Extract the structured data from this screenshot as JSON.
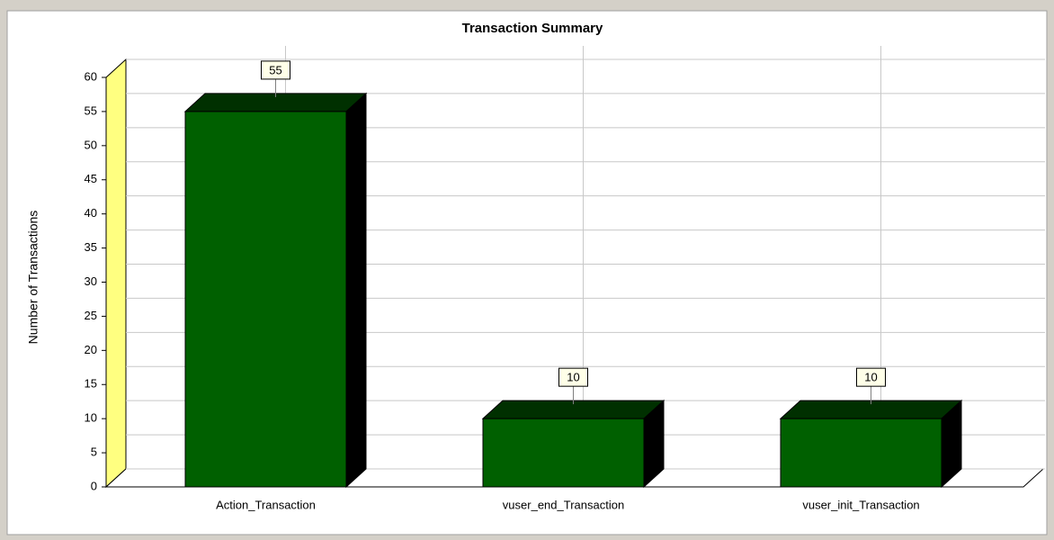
{
  "chart_data": {
    "type": "bar",
    "title": "Transaction Summary",
    "y_label": "Number of Transactions",
    "categories": [
      "Action_Transaction",
      "vuser_end_Transaction",
      "vuser_init_Transaction"
    ],
    "values": [
      55,
      10,
      10
    ],
    "color": "#006000",
    "ylim": [
      0,
      60
    ],
    "yticks": [
      0,
      5,
      10,
      15,
      20,
      25,
      30,
      35,
      40,
      45,
      50,
      55,
      60
    ],
    "grid": true
  }
}
